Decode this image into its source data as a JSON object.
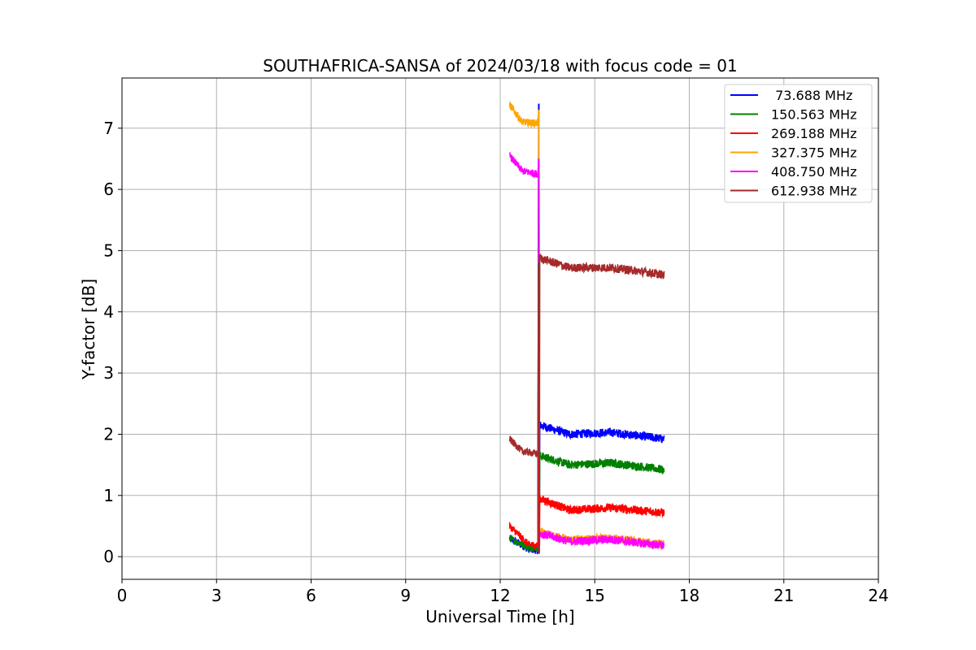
{
  "chart_data": {
    "type": "line",
    "title": "SOUTHAFRICA-SANSA of 2024/03/18 with focus code = 01",
    "xlabel": "Universal Time [h]",
    "ylabel": "Y-factor [dB]",
    "xlim": [
      0,
      24
    ],
    "ylim": [
      -0.37,
      7.82
    ],
    "xticks": [
      0,
      3,
      6,
      9,
      12,
      15,
      18,
      21,
      24
    ],
    "yticks": [
      0,
      1,
      2,
      3,
      4,
      5,
      6,
      7
    ],
    "grid": true,
    "legend_position": "top-right",
    "series": [
      {
        "name": " 73.688 MHz",
        "color": "#0000ff",
        "before": [
          [
            12.3,
            0.3
          ],
          [
            12.9,
            0.12
          ],
          [
            13.2,
            0.1
          ]
        ],
        "spike": 7.4,
        "after": [
          [
            13.25,
            2.15
          ],
          [
            14.2,
            2.0
          ],
          [
            15.5,
            2.03
          ],
          [
            16.5,
            1.97
          ],
          [
            17.2,
            1.92
          ]
        ]
      },
      {
        "name": "150.563 MHz",
        "color": "#008000",
        "before": [
          [
            12.3,
            0.3
          ],
          [
            12.9,
            0.15
          ],
          [
            13.2,
            0.15
          ]
        ],
        "spike": 6.6,
        "after": [
          [
            13.25,
            1.65
          ],
          [
            14.2,
            1.5
          ],
          [
            15.5,
            1.53
          ],
          [
            16.5,
            1.47
          ],
          [
            17.2,
            1.42
          ]
        ]
      },
      {
        "name": "269.188 MHz",
        "color": "#ff0000",
        "before": [
          [
            12.3,
            0.5
          ],
          [
            12.9,
            0.2
          ],
          [
            13.2,
            0.18
          ]
        ],
        "spike": 3.1,
        "after": [
          [
            13.25,
            0.95
          ],
          [
            14.2,
            0.76
          ],
          [
            15.5,
            0.8
          ],
          [
            16.5,
            0.75
          ],
          [
            17.2,
            0.72
          ]
        ]
      },
      {
        "name": "327.375 MHz",
        "color": "#ffa500",
        "before": [
          [
            12.3,
            7.38
          ],
          [
            12.7,
            7.1
          ],
          [
            13.2,
            7.08
          ]
        ],
        "spike": 7.3,
        "after": [
          [
            13.25,
            0.4
          ],
          [
            14.2,
            0.27
          ],
          [
            15.5,
            0.3
          ],
          [
            16.5,
            0.24
          ],
          [
            17.2,
            0.2
          ]
        ]
      },
      {
        "name": "408.750 MHz",
        "color": "#ff00ff",
        "before": [
          [
            12.3,
            6.55
          ],
          [
            12.7,
            6.3
          ],
          [
            13.2,
            6.25
          ]
        ],
        "spike": 6.5,
        "after": [
          [
            13.25,
            0.38
          ],
          [
            14.2,
            0.25
          ],
          [
            15.5,
            0.28
          ],
          [
            16.5,
            0.22
          ],
          [
            17.2,
            0.18
          ]
        ]
      },
      {
        "name": "612.938 MHz",
        "color": "#a52a2a",
        "before": [
          [
            12.3,
            1.92
          ],
          [
            12.7,
            1.72
          ],
          [
            13.2,
            1.68
          ]
        ],
        "spike": 4.8,
        "after": [
          [
            13.25,
            4.88
          ],
          [
            14.2,
            4.72
          ],
          [
            15.5,
            4.72
          ],
          [
            16.5,
            4.66
          ],
          [
            17.2,
            4.6
          ]
        ]
      }
    ]
  }
}
